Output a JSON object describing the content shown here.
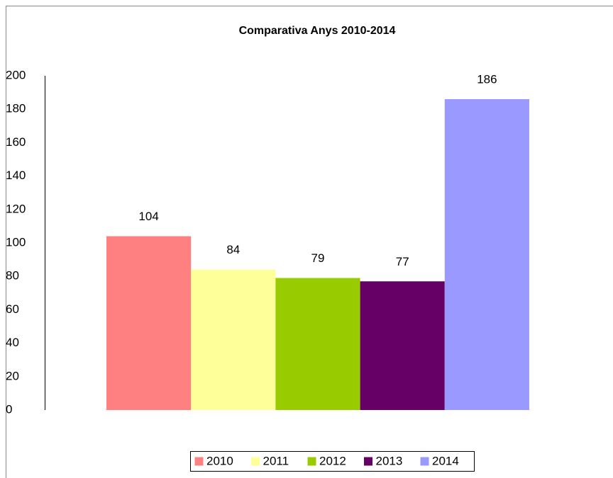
{
  "chart_data": {
    "type": "bar",
    "title": "Comparativa Anys 2010-2014",
    "categories": [
      null
    ],
    "series": [
      {
        "name": "2010",
        "color": "#ff8080",
        "values": [
          104
        ]
      },
      {
        "name": "2011",
        "color": "#ffff99",
        "values": [
          84
        ]
      },
      {
        "name": "2012",
        "color": "#99cc00",
        "values": [
          79
        ]
      },
      {
        "name": "2013",
        "color": "#660066",
        "values": [
          77
        ]
      },
      {
        "name": "2014",
        "color": "#9999ff",
        "values": [
          186
        ]
      }
    ],
    "ylim": [
      0,
      200
    ],
    "yticks": [
      0,
      20,
      40,
      60,
      80,
      100,
      120,
      140,
      160,
      180,
      200
    ],
    "grid": false,
    "legend": "bottom"
  }
}
